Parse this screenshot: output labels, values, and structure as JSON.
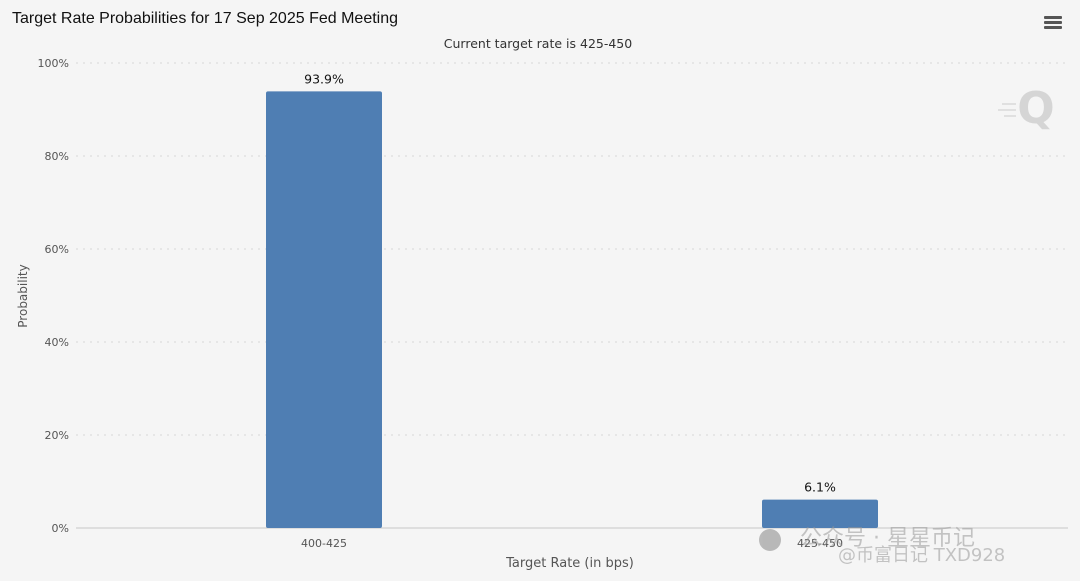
{
  "chart_data": {
    "type": "bar",
    "title": "Target Rate Probabilities for 17 Sep 2025 Fed Meeting",
    "subtitle": "Current target rate is 425-450",
    "categories": [
      "400-425",
      "425-450"
    ],
    "values": [
      93.9,
      6.1
    ],
    "value_labels": [
      "93.9%",
      "6.1%"
    ],
    "xlabel": "Target Rate (in bps)",
    "ylabel": "Probability",
    "ylim": [
      0,
      100
    ],
    "yticks": [
      0,
      20,
      40,
      60,
      80,
      100
    ],
    "ytick_labels": [
      "0%",
      "20%",
      "40%",
      "60%",
      "80%",
      "100%"
    ],
    "grid": true,
    "bar_color": "#4f7eb3"
  },
  "watermark": {
    "logo_letter": "Q",
    "overlay_text": "公众号 · 星星币记",
    "overlay_handle": "@币富日记 TXD928"
  },
  "menu_icon": "hamburger-menu-icon"
}
